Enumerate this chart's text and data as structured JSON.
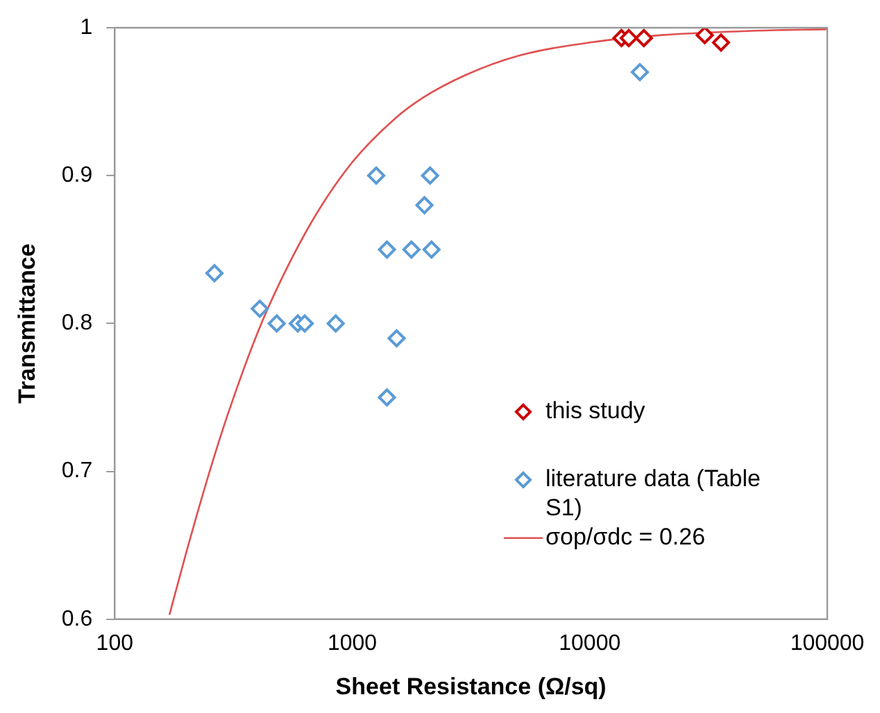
{
  "chart_data": {
    "type": "scatter",
    "xlabel": "Sheet Resistance (Ω/sq)",
    "ylabel": "Transmittance",
    "log": "x",
    "xlim": [
      100,
      100000
    ],
    "xticks": [
      100,
      1000,
      10000,
      100000
    ],
    "ylim": [
      0.6,
      1
    ],
    "yticks": [
      0.6,
      0.7,
      0.8,
      0.9,
      1
    ],
    "grid": false,
    "legend": "bottom right",
    "marker": "diamond",
    "series": [
      {
        "name": "this study",
        "color": "#cc0000",
        "x": [
          13600,
          14600,
          16900,
          30500,
          35700
        ],
        "values": [
          0.993,
          0.993,
          0.993,
          0.995,
          0.99
        ]
      },
      {
        "name": "literature data (Table S1)",
        "color": "#5b9bd5",
        "x": [
          263,
          408,
          481,
          590,
          631,
          852,
          1262,
          2127,
          2014,
          1400,
          1775,
          2157,
          1538,
          1400,
          16260
        ],
        "values": [
          0.834,
          0.81,
          0.8,
          0.8,
          0.8,
          0.8,
          0.9,
          0.9,
          0.88,
          0.85,
          0.85,
          0.85,
          0.79,
          0.75,
          0.97
        ]
      },
      {
        "name": "σop/σdc = 0.26",
        "type": "line",
        "color": "#e05050",
        "marker": "none",
        "x": [
          170,
          200,
          250,
          300,
          400,
          500,
          700,
          1000,
          1500,
          2000,
          3000,
          5000,
          10000,
          20000,
          50000,
          100000
        ],
        "values": [
          0.603,
          0.645,
          0.699,
          0.739,
          0.794,
          0.829,
          0.873,
          0.909,
          0.938,
          0.953,
          0.968,
          0.981,
          0.99,
          0.995,
          0.998,
          0.999
        ]
      }
    ]
  }
}
